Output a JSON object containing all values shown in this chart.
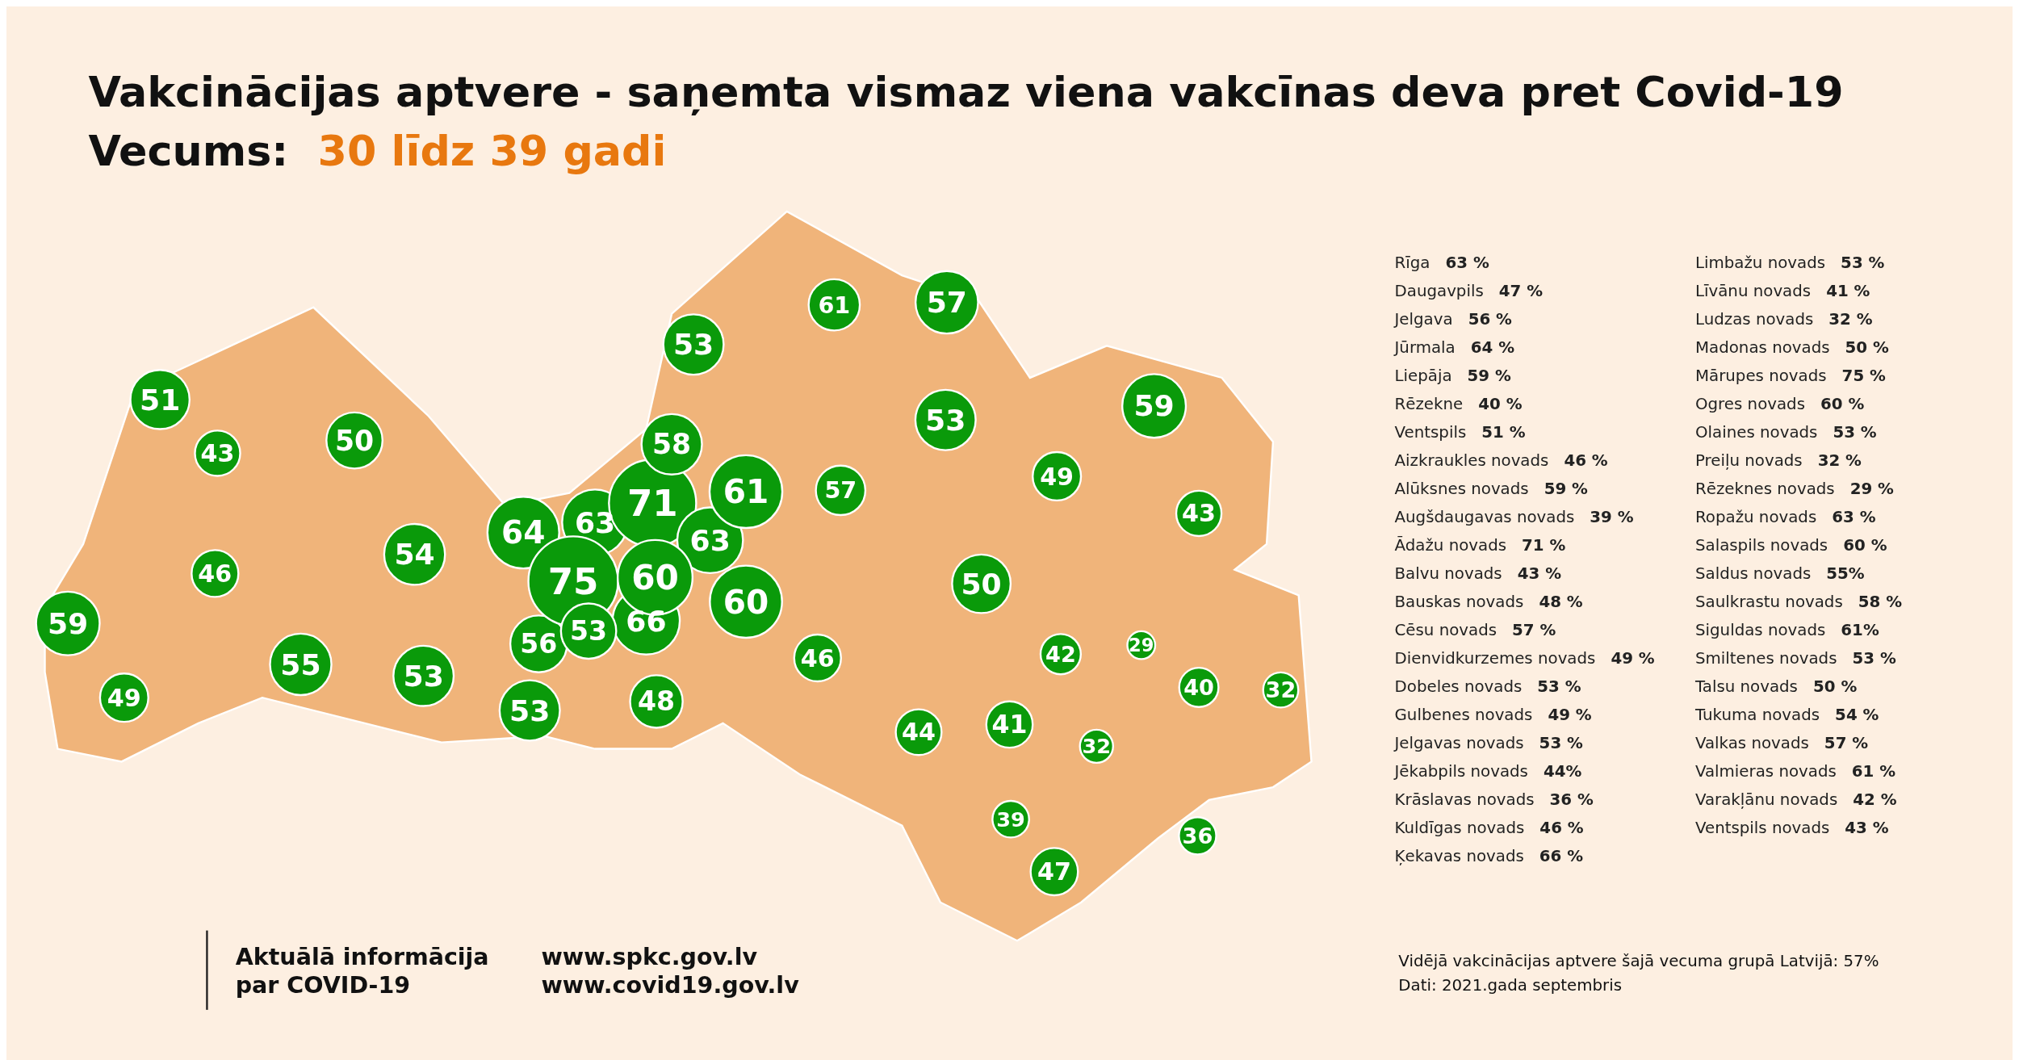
{
  "chart_data": [
    {
      "type": "other",
      "title": "Vakcinācijas aptvere - saņemta vismaz viena vakcīnas deva pret Covid-19",
      "subtitle": "Vecums:  30 līdz 39 gadi",
      "categories": [
        "Rīga",
        "Daugavpils",
        "Jelgava",
        "Jūrmala",
        "Liepāja",
        "Rēzekne",
        "Ventspils",
        "Aizkraukles novads",
        "Alūksnes novads",
        "Augšdaugavas novads",
        "Ādažu novads",
        "Balvu novads",
        "Bauskas novads",
        "Cēsu novads",
        "Dienvidkurzemes novads",
        "Dobeles novads",
        "Gulbenes novads",
        "Jelgavas novads",
        "Jēkabpils novads",
        "Krāslavas novads",
        "Kuldīgas novads",
        "Ķekavas novads",
        "Limbažu novads",
        "Līvānu novads",
        "Ludzas novads",
        "Madonas novads",
        "Mārupes novads",
        "Ogres novads",
        "Olaines novads",
        "Preiļu novads",
        "Rēzeknes novads",
        "Ropažu novads",
        "Salaspils novads",
        "Saldus novads",
        "Saulkrastu novads",
        "Siguldas novads",
        "Smiltenes novads",
        "Talsu novads",
        "Tukuma novads",
        "Valkas novads",
        "Valmieras novads",
        "Varakļānu novads",
        "Ventspils novads"
      ],
      "values": [
        63,
        47,
        56,
        64,
        59,
        40,
        51,
        46,
        59,
        39,
        71,
        43,
        48,
        57,
        49,
        53,
        49,
        53,
        44,
        36,
        46,
        66,
        53,
        41,
        32,
        50,
        75,
        60,
        53,
        32,
        29,
        63,
        60,
        55,
        58,
        61,
        53,
        50,
        54,
        57,
        61,
        42,
        43
      ],
      "value_labels": [
        "63 %",
        "47 %",
        "56 %",
        "64 %",
        "59 %",
        "40 %",
        "51 %",
        "46 %",
        "59 %",
        "39 %",
        "71 %",
        "43 %",
        "48 %",
        "57 %",
        "49 %",
        "53 %",
        "49 %",
        "53 %",
        "44%",
        "36 %",
        "46 %",
        "66 %",
        "53 %",
        "41 %",
        "32 %",
        "50 %",
        "75 %",
        "60 %",
        "53 %",
        "32 %",
        "29 %",
        "63 %",
        "60 %",
        "55%",
        "58 %",
        "61%",
        "53 %",
        "50 %",
        "54 %",
        "57 %",
        "61 %",
        "42 %",
        "43 %"
      ],
      "color": "#0a9a0a",
      "annotations": [
        "Aktuālā informācija\npar COVID-19",
        "www.spkc.gov.lv\nwww.covid19.gov.lv",
        "Vidējā vakcinācijas aptvere šajā vecuma grupā Latvijā: 57%",
        "Dati: 2021.gada septembris"
      ]
    },
    {
      "type": "other",
      "categories": [
        null,
        null,
        null,
        null,
        null,
        null,
        null,
        null,
        null,
        null,
        null,
        null,
        null,
        null,
        null,
        null,
        null,
        null,
        null,
        null,
        null,
        null,
        null,
        null,
        null,
        null,
        null,
        null,
        null,
        null,
        null,
        null,
        null,
        null,
        null,
        null,
        null,
        null,
        null,
        null,
        null,
        null,
        null
      ],
      "value_labels": [
        "63",
        "47",
        "56",
        "64",
        "59",
        "40",
        "51",
        "46",
        "59",
        "39",
        "71",
        "43",
        "48",
        "57",
        "49",
        "53",
        "49",
        "53",
        "44",
        "36",
        "46",
        "66",
        "53",
        "41",
        "32",
        "50",
        "75",
        "60",
        "53",
        "32",
        "29",
        "63",
        "60",
        "55",
        "58",
        "61",
        "53",
        "50",
        "54",
        "57",
        "61",
        "42",
        "43"
      ]
    }
  ]
}
